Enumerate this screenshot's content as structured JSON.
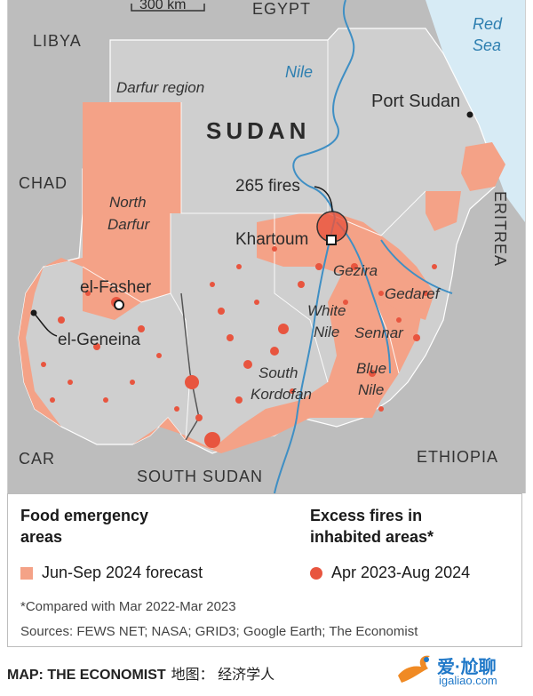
{
  "map": {
    "scale_label": "300 km",
    "countries": {
      "libya": "LIBYA",
      "egypt": "EGYPT",
      "chad": "CHAD",
      "car": "CAR",
      "south_sudan": "SOUTH SUDAN",
      "ethiopia": "ETHIOPIA",
      "eritrea": "ERITREA",
      "sudan": "SUDAN"
    },
    "water": {
      "red_sea_1": "Red",
      "red_sea_2": "Sea",
      "nile": "Nile",
      "white_nile_1": "White",
      "white_nile_2": "Nile",
      "blue_nile_1": "Blue",
      "blue_nile_2": "Nile"
    },
    "regions": {
      "darfur": "Darfur region",
      "north_darfur_1": "North",
      "north_darfur_2": "Darfur",
      "gezira": "Gezira",
      "gedaref": "Gedaref",
      "sennar": "Sennar",
      "south_kordofan_1": "South",
      "south_kordofan_2": "Kordofan"
    },
    "cities": {
      "port_sudan": "Port Sudan",
      "khartoum": "Khartoum",
      "el_fasher": "el-Fasher",
      "el_geneina": "el-Geneina"
    },
    "annotation": "265 fires",
    "colors": {
      "land": "#cfcfcf",
      "neighbor": "#bdbdbd",
      "emergency": "#f4a287",
      "fire": "#e8553f",
      "sea": "#d7ebf5",
      "river": "#3f8fc4"
    }
  },
  "legend": {
    "food_title_1": "Food emergency",
    "food_title_2": "areas",
    "food_item": "Jun-Sep 2024 forecast",
    "fires_title_1": "Excess fires in",
    "fires_title_2": "inhabited areas*",
    "fires_item": "Apr 2023-Aug 2024",
    "footnote": "*Compared with Mar 2022-Mar 2023",
    "sources": "Sources: FEWS NET; NASA; GRID3; Google Earth; The Economist"
  },
  "caption": {
    "label": "MAP: THE ECONOMIST",
    "chinese": "地图： 经济学人"
  },
  "watermark": {
    "text": "爱·尬聊",
    "url": "igaliao.com"
  }
}
